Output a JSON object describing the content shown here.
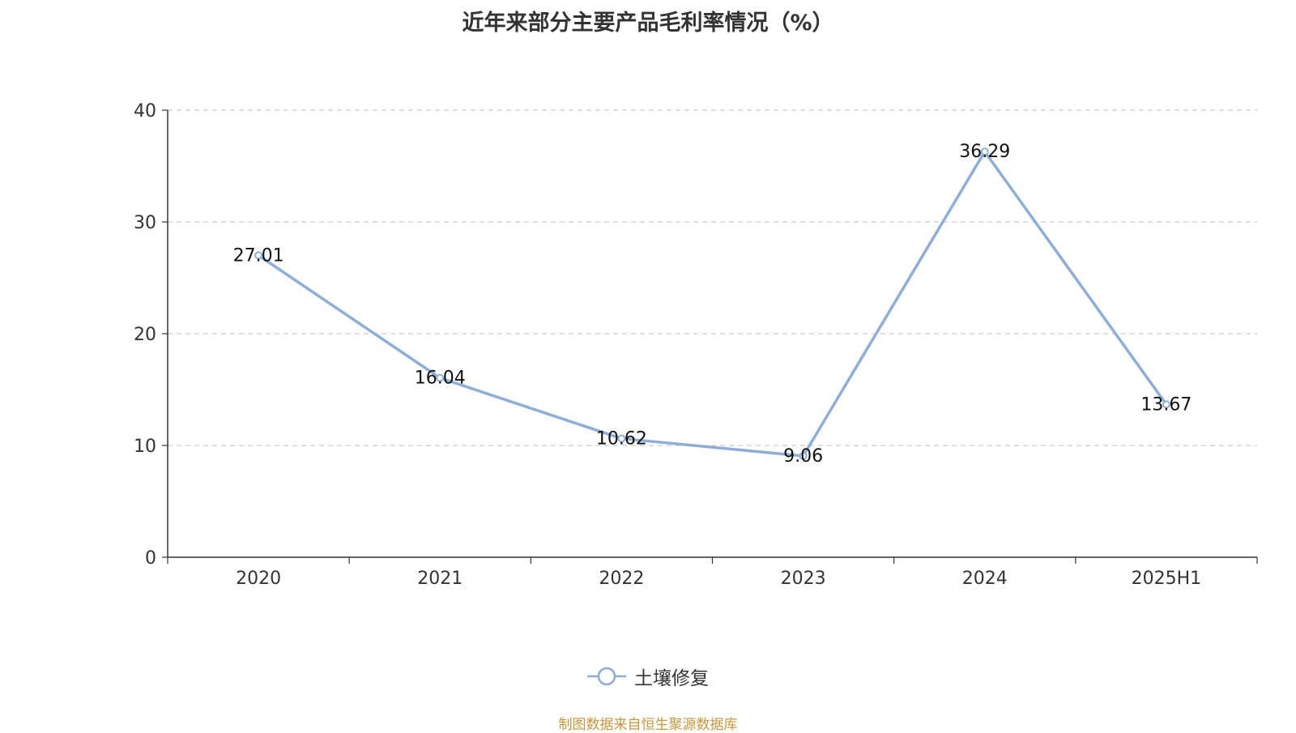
{
  "chart_data": {
    "type": "line",
    "title": "近年来部分主要产品毛利率情况（%）",
    "categories": [
      "2020",
      "2021",
      "2022",
      "2023",
      "2024",
      "2025H1"
    ],
    "series": [
      {
        "name": "土壤修复",
        "values": [
          27.01,
          16.04,
          10.62,
          9.06,
          36.29,
          13.67
        ],
        "labels": [
          "27.01",
          "16.04",
          "10.62",
          "9.06",
          "36.29",
          "13.67"
        ],
        "color": "#8eadd8"
      }
    ],
    "y_ticks": [
      "0",
      "10",
      "20",
      "30",
      "40"
    ],
    "ylim": [
      0,
      40
    ],
    "grid": "horizontal-dashed",
    "legend_position": "bottom-center"
  },
  "source_note": "制图数据来自恒生聚源数据库",
  "colors": {
    "axis": "#333333",
    "grid": "#cccccc",
    "text": "#333333",
    "source": "#c8963e"
  }
}
